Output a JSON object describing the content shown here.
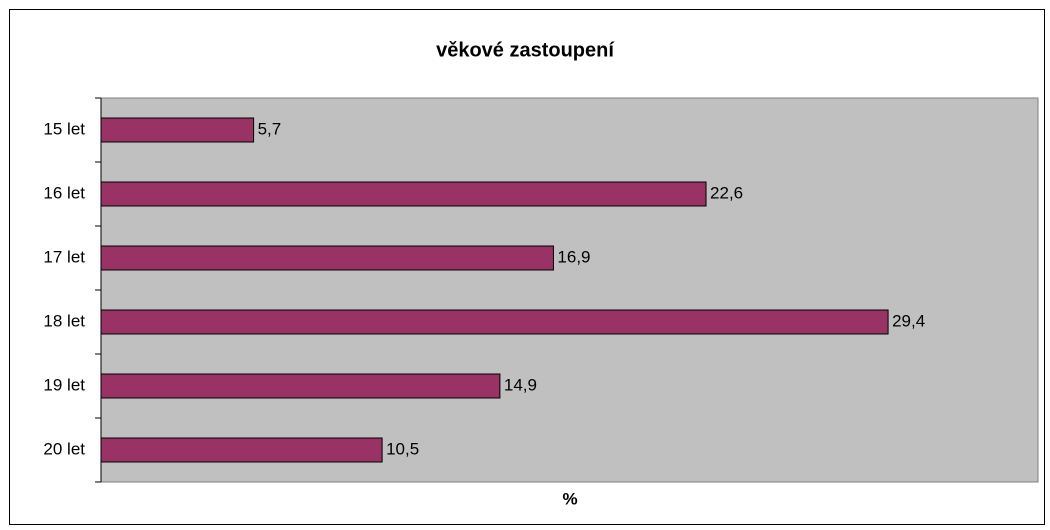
{
  "chart_data": {
    "type": "bar",
    "orientation": "horizontal",
    "title": "věkové zastoupení",
    "x_label": "%",
    "categories": [
      "15 let",
      "16 let",
      "17 let",
      "18 let",
      "19 let",
      "20 let"
    ],
    "values": [
      5.7,
      22.6,
      16.9,
      29.4,
      14.9,
      10.5
    ],
    "value_labels": [
      "5,7",
      "22,6",
      "16,9",
      "29,4",
      "14,9",
      "10,5"
    ],
    "color": "#993366",
    "xlim": [
      0,
      35
    ]
  }
}
